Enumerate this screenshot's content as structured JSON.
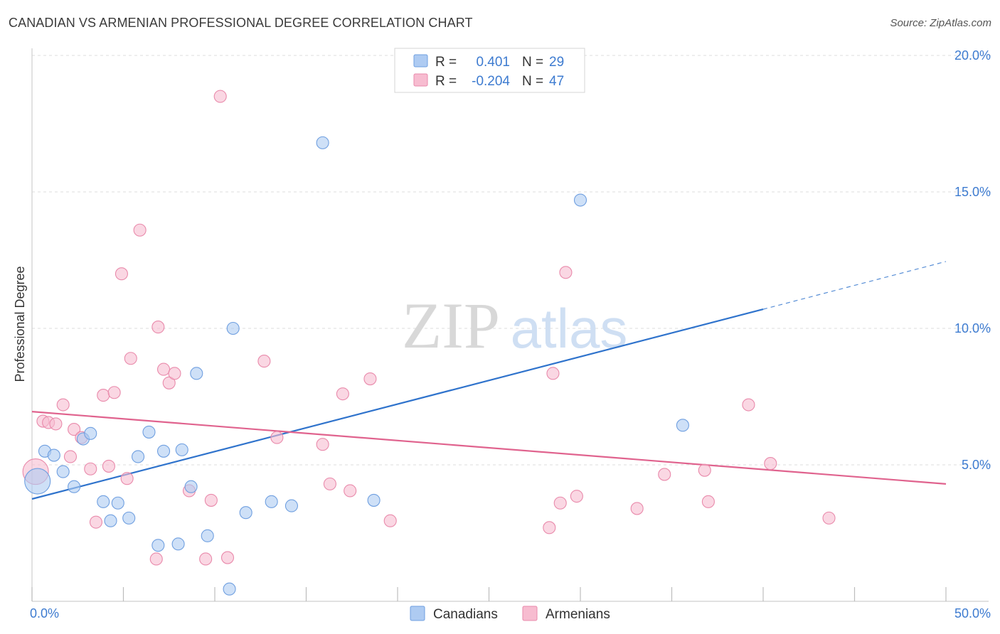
{
  "title": "CANADIAN VS ARMENIAN PROFESSIONAL DEGREE CORRELATION CHART",
  "source": "Source: ZipAtlas.com",
  "watermark": {
    "zip": "ZIP",
    "atlas": "atlas"
  },
  "colors": {
    "canadians_fill": "#aecbf2",
    "canadians_stroke": "#6f9fe0",
    "canadians_line": "#2f73cc",
    "armenians_fill": "#f7bcd0",
    "armenians_stroke": "#e98aab",
    "armenians_line": "#e0638e",
    "tick_text": "#3d7bd0",
    "grid": "#dcdcdc"
  },
  "legend_stats": [
    {
      "series": "Canadians",
      "r_label": "R =",
      "r_value": "0.401",
      "n_label": "N =",
      "n_value": "29"
    },
    {
      "series": "Armenians",
      "r_label": "R =",
      "r_value": "-0.204",
      "n_label": "N =",
      "n_value": "47"
    }
  ],
  "chart_data": {
    "type": "scatter",
    "title": "CANADIAN VS ARMENIAN PROFESSIONAL DEGREE CORRELATION CHART",
    "xlabel": "",
    "ylabel": "Professional Degree",
    "xlim": [
      0,
      50
    ],
    "ylim": [
      0,
      20.5
    ],
    "x_tick_labels": [
      "0.0%",
      "50.0%"
    ],
    "y_ticks": [
      5,
      10,
      15,
      20
    ],
    "y_tick_labels": [
      "5.0%",
      "10.0%",
      "15.0%",
      "20.0%"
    ],
    "grid": true,
    "legend_position": "bottom-center",
    "series": [
      {
        "name": "Canadians",
        "r": 0.401,
        "n": 29,
        "trend": {
          "x0": 0,
          "y0": 3.75,
          "x1": 40,
          "y1": 10.7,
          "dashed_to_x": 50,
          "dashed_to_y": 12.45
        },
        "points": [
          {
            "x": 0.3,
            "y": 4.4,
            "big": true
          },
          {
            "x": 0.7,
            "y": 5.5
          },
          {
            "x": 1.2,
            "y": 5.35
          },
          {
            "x": 1.7,
            "y": 4.75
          },
          {
            "x": 2.3,
            "y": 4.2
          },
          {
            "x": 2.8,
            "y": 5.95
          },
          {
            "x": 3.2,
            "y": 6.15
          },
          {
            "x": 3.9,
            "y": 3.65
          },
          {
            "x": 4.3,
            "y": 2.95
          },
          {
            "x": 4.7,
            "y": 3.6
          },
          {
            "x": 5.3,
            "y": 3.05
          },
          {
            "x": 5.8,
            "y": 5.3
          },
          {
            "x": 6.4,
            "y": 6.2
          },
          {
            "x": 6.9,
            "y": 2.05
          },
          {
            "x": 7.2,
            "y": 5.5
          },
          {
            "x": 8.0,
            "y": 2.1
          },
          {
            "x": 8.2,
            "y": 5.55
          },
          {
            "x": 8.7,
            "y": 4.2
          },
          {
            "x": 9.0,
            "y": 8.35
          },
          {
            "x": 9.6,
            "y": 2.4
          },
          {
            "x": 10.8,
            "y": 0.45
          },
          {
            "x": 11.0,
            "y": 10.0
          },
          {
            "x": 11.7,
            "y": 3.25
          },
          {
            "x": 13.1,
            "y": 3.65
          },
          {
            "x": 14.2,
            "y": 3.5
          },
          {
            "x": 15.9,
            "y": 16.8
          },
          {
            "x": 18.7,
            "y": 3.7
          },
          {
            "x": 30.0,
            "y": 14.7
          },
          {
            "x": 35.6,
            "y": 6.45
          }
        ]
      },
      {
        "name": "Armenians",
        "r": -0.204,
        "n": 47,
        "trend": {
          "x0": 0,
          "y0": 6.95,
          "x1": 50,
          "y1": 4.3
        },
        "points": [
          {
            "x": 0.2,
            "y": 4.75,
            "big": true
          },
          {
            "x": 0.6,
            "y": 6.6
          },
          {
            "x": 0.9,
            "y": 6.55
          },
          {
            "x": 1.3,
            "y": 6.5
          },
          {
            "x": 1.7,
            "y": 7.2
          },
          {
            "x": 2.1,
            "y": 5.3
          },
          {
            "x": 2.3,
            "y": 6.3
          },
          {
            "x": 2.7,
            "y": 6.0
          },
          {
            "x": 3.2,
            "y": 4.85
          },
          {
            "x": 3.5,
            "y": 2.9
          },
          {
            "x": 3.9,
            "y": 7.55
          },
          {
            "x": 4.2,
            "y": 4.95
          },
          {
            "x": 4.5,
            "y": 7.65
          },
          {
            "x": 4.9,
            "y": 12.0
          },
          {
            "x": 5.2,
            "y": 4.5
          },
          {
            "x": 5.4,
            "y": 8.9
          },
          {
            "x": 5.9,
            "y": 13.6
          },
          {
            "x": 6.8,
            "y": 1.55
          },
          {
            "x": 6.9,
            "y": 10.05
          },
          {
            "x": 7.2,
            "y": 8.5
          },
          {
            "x": 7.5,
            "y": 8.0
          },
          {
            "x": 7.8,
            "y": 8.35
          },
          {
            "x": 8.6,
            "y": 4.05
          },
          {
            "x": 9.5,
            "y": 1.55
          },
          {
            "x": 9.8,
            "y": 3.7
          },
          {
            "x": 10.3,
            "y": 18.5
          },
          {
            "x": 10.7,
            "y": 1.6
          },
          {
            "x": 12.7,
            "y": 8.8
          },
          {
            "x": 13.4,
            "y": 6.0
          },
          {
            "x": 15.9,
            "y": 5.75
          },
          {
            "x": 16.3,
            "y": 4.3
          },
          {
            "x": 17.0,
            "y": 7.6
          },
          {
            "x": 17.4,
            "y": 4.05
          },
          {
            "x": 18.5,
            "y": 8.15
          },
          {
            "x": 19.6,
            "y": 2.95
          },
          {
            "x": 28.3,
            "y": 2.7
          },
          {
            "x": 28.5,
            "y": 8.35
          },
          {
            "x": 28.9,
            "y": 3.6
          },
          {
            "x": 29.8,
            "y": 3.85
          },
          {
            "x": 29.2,
            "y": 12.05
          },
          {
            "x": 33.1,
            "y": 3.4
          },
          {
            "x": 34.6,
            "y": 4.65
          },
          {
            "x": 36.8,
            "y": 4.8
          },
          {
            "x": 37.0,
            "y": 3.65
          },
          {
            "x": 39.2,
            "y": 7.2
          },
          {
            "x": 40.4,
            "y": 5.05
          },
          {
            "x": 43.6,
            "y": 3.05
          }
        ]
      }
    ]
  }
}
